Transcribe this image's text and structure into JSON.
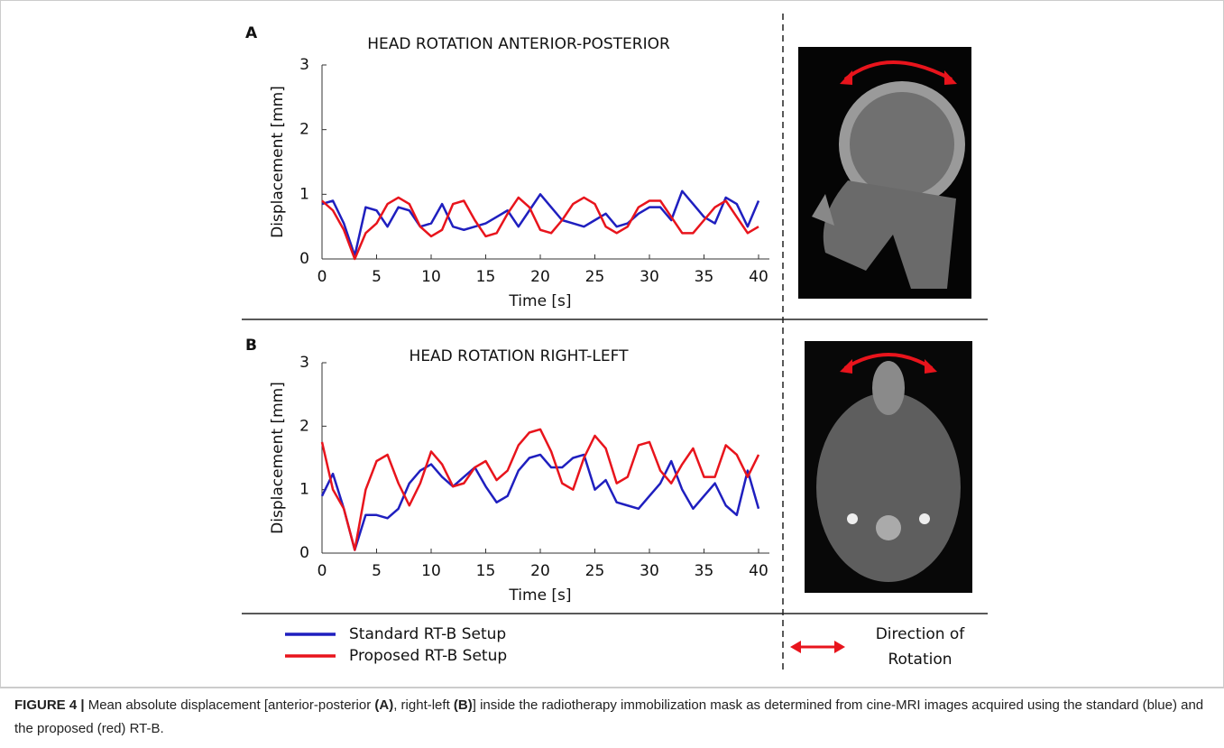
{
  "chart_data": [
    {
      "type": "line",
      "panel": "A",
      "title": "HEAD ROTATION ANTERIOR-POSTERIOR",
      "x_label": "Time [s]",
      "y_label": "Displacement [mm]",
      "x": [
        0,
        1,
        2,
        3,
        4,
        5,
        6,
        7,
        8,
        9,
        10,
        11,
        12,
        13,
        14,
        15,
        16,
        17,
        18,
        19,
        20,
        21,
        22,
        23,
        24,
        25,
        26,
        27,
        28,
        29,
        30,
        31,
        32,
        33,
        34,
        35,
        36,
        37,
        38,
        39,
        40
      ],
      "series": [
        {
          "name": "Standard RT-B Setup",
          "color": "#1f1fbf",
          "values": [
            0.85,
            0.9,
            0.55,
            0.05,
            0.8,
            0.75,
            0.5,
            0.8,
            0.75,
            0.5,
            0.55,
            0.85,
            0.5,
            0.45,
            0.5,
            0.55,
            0.65,
            0.75,
            0.5,
            0.75,
            1.0,
            0.8,
            0.6,
            0.55,
            0.5,
            0.6,
            0.7,
            0.5,
            0.55,
            0.7,
            0.8,
            0.8,
            0.6,
            1.05,
            0.85,
            0.65,
            0.55,
            0.95,
            0.85,
            0.5,
            0.9
          ]
        },
        {
          "name": "Proposed RT-B Setup",
          "color": "#e8141c",
          "values": [
            0.9,
            0.75,
            0.45,
            0.0,
            0.4,
            0.55,
            0.85,
            0.95,
            0.85,
            0.5,
            0.35,
            0.45,
            0.85,
            0.9,
            0.6,
            0.35,
            0.4,
            0.7,
            0.95,
            0.8,
            0.45,
            0.4,
            0.6,
            0.85,
            0.95,
            0.85,
            0.5,
            0.4,
            0.5,
            0.8,
            0.9,
            0.9,
            0.65,
            0.4,
            0.4,
            0.6,
            0.8,
            0.9,
            0.65,
            0.4,
            0.5
          ]
        }
      ],
      "xlim": [
        0,
        40
      ],
      "xticks": [
        0,
        5,
        10,
        15,
        20,
        25,
        30,
        35,
        40
      ],
      "ylim": [
        0,
        3
      ],
      "yticks": [
        0,
        1,
        2,
        3
      ]
    },
    {
      "type": "line",
      "panel": "B",
      "title": "HEAD ROTATION RIGHT-LEFT",
      "x_label": "Time [s]",
      "y_label": "Displacement [mm]",
      "x": [
        0,
        1,
        2,
        3,
        4,
        5,
        6,
        7,
        8,
        9,
        10,
        11,
        12,
        13,
        14,
        15,
        16,
        17,
        18,
        19,
        20,
        21,
        22,
        23,
        24,
        25,
        26,
        27,
        28,
        29,
        30,
        31,
        32,
        33,
        34,
        35,
        36,
        37,
        38,
        39,
        40
      ],
      "series": [
        {
          "color": "#1f1fbf",
          "values": [
            0.9,
            1.25,
            0.7,
            0.05,
            0.6,
            0.6,
            0.55,
            0.7,
            1.1,
            1.3,
            1.4,
            1.2,
            1.05,
            1.2,
            1.35,
            1.05,
            0.8,
            0.9,
            1.3,
            1.5,
            1.55,
            1.35,
            1.35,
            1.5,
            1.55,
            1.0,
            1.15,
            0.8,
            0.75,
            0.7,
            0.9,
            1.1,
            1.45,
            1.0,
            0.7,
            0.9,
            1.1,
            0.75,
            0.6,
            1.3,
            0.7
          ]
        },
        {
          "color": "#e8141c",
          "values": [
            1.75,
            1.0,
            0.7,
            0.05,
            1.0,
            1.45,
            1.55,
            1.1,
            0.75,
            1.1,
            1.6,
            1.4,
            1.05,
            1.1,
            1.35,
            1.45,
            1.15,
            1.3,
            1.7,
            1.9,
            1.95,
            1.6,
            1.1,
            1.0,
            1.5,
            1.85,
            1.65,
            1.1,
            1.2,
            1.7,
            1.75,
            1.3,
            1.1,
            1.4,
            1.65,
            1.2,
            1.2,
            1.7,
            1.55,
            1.2,
            1.55
          ]
        }
      ],
      "xlim": [
        0,
        40
      ],
      "xticks": [
        0,
        5,
        10,
        15,
        20,
        25,
        30,
        35,
        40
      ],
      "ylim": [
        0,
        3
      ],
      "yticks": [
        0,
        1,
        2,
        3
      ]
    }
  ],
  "rotation_legend": [
    "Direction of",
    "Rotation"
  ],
  "caption": [
    "FIGURE 4 |",
    " Mean absolute displacement [anterior-posterior ",
    "(A)",
    ", right-left ",
    "(B)",
    "] inside the radiotherapy immobilization mask as determined from cine-MRI images acquired using the standard (blue) and the proposed (red) RT-B."
  ]
}
